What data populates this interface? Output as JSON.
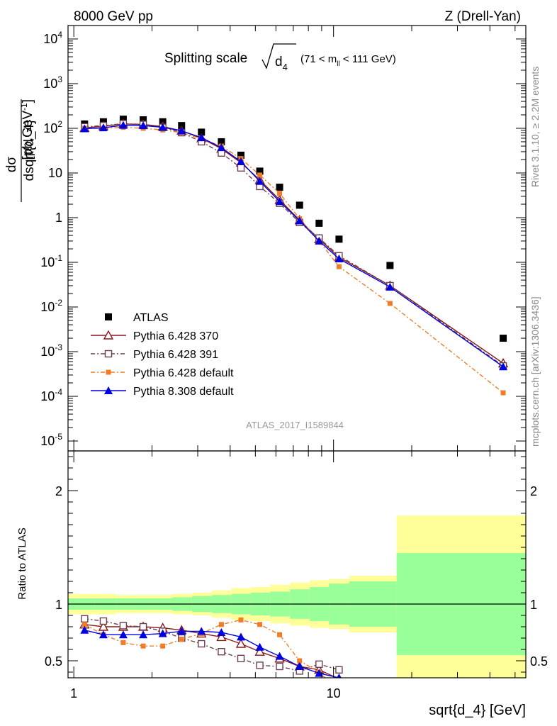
{
  "header": {
    "energy": "8000 GeV pp",
    "process": "Z (Drell-Yan)",
    "title_main": "Splitting scale",
    "title_sub": "(71 < m",
    "title_sub2": " < 111 GeV)",
    "side_rivet": "Rivet 3.1.10, ≥ 2.2M events",
    "side_mcplots": "mcplots.cern.ch [arXiv:1306.3436]",
    "analysis_id": "ATLAS_2017_I1589844",
    "ylabel_num": "dσ",
    "ylabel_den": "dsqrt{d_4}",
    "ylabel_unit": "[pb,GeV",
    "xlabel": "sqrt{d_4} [GeV]",
    "ratio_ylabel": "Ratio to ATLAS"
  },
  "colors": {
    "atlas": "#000000",
    "py370": "#8b1a1a",
    "py391": "#6b4050",
    "py6def": "#f07c28",
    "py8": "#0000e0",
    "band_inner": "#99ff99",
    "band_outer": "#ffff99"
  },
  "chart_data": [
    {
      "type": "scatter",
      "panel": "main",
      "xscale": "log",
      "yscale": "log",
      "xlim": [
        0.95,
        55
      ],
      "ylim": [
        6e-06,
        20000
      ],
      "ytick_labels": [
        "10^-5",
        "10^-4",
        "10^-3",
        "10^-2",
        "10^-1",
        "1",
        "10",
        "10^2",
        "10^3",
        "10^4"
      ],
      "xtick_labels": [
        "1",
        "10"
      ],
      "legend_position": "bottom-left",
      "x": [
        1.1,
        1.3,
        1.55,
        1.85,
        2.2,
        2.6,
        3.1,
        3.7,
        4.4,
        5.2,
        6.2,
        7.4,
        8.8,
        10.5,
        16.5,
        45
      ],
      "series": [
        {
          "name": "ATLAS",
          "key": "atlas",
          "values": [
            125,
            140,
            160,
            155,
            140,
            115,
            82,
            50,
            25,
            11,
            4.8,
            1.9,
            0.75,
            0.33,
            0.085,
            0.002
          ]
        },
        {
          "name": "Pythia 6.428 370",
          "key": "py370",
          "values": [
            102,
            112,
            125,
            122,
            110,
            88,
            60,
            35,
            17,
            7,
            2.5,
            0.88,
            0.33,
            0.13,
            0.03,
            0.00055
          ]
        },
        {
          "name": "Pythia 6.428 391",
          "key": "py391",
          "values": [
            108,
            115,
            127,
            122,
            105,
            80,
            50,
            28,
            13,
            5,
            2.1,
            0.78,
            0.35,
            0.14,
            0.03,
            0.00048
          ]
        },
        {
          "name": "Pythia 6.428 default",
          "key": "py6def",
          "values": [
            100,
            100,
            105,
            100,
            92,
            80,
            58,
            40,
            21,
            9,
            3.5,
            0.95,
            0.3,
            0.08,
            0.012,
            0.00012
          ]
        },
        {
          "name": "Pythia 8.308 default",
          "key": "py8",
          "values": [
            98,
            103,
            117,
            115,
            105,
            88,
            62,
            37,
            18,
            6.5,
            2.3,
            0.85,
            0.3,
            0.12,
            0.028,
            0.00046
          ]
        }
      ]
    },
    {
      "type": "line",
      "panel": "ratio",
      "xscale": "log",
      "xlim": [
        0.95,
        55
      ],
      "ylim": [
        0.35,
        2.35
      ],
      "ytick_labels": [
        "0.5",
        "1",
        "2"
      ],
      "x": [
        1.1,
        1.3,
        1.55,
        1.85,
        2.2,
        2.6,
        3.1,
        3.7,
        4.4,
        5.2,
        6.2,
        7.4,
        8.8,
        10.5
      ],
      "series": [
        {
          "name": "Pythia 6.428 370",
          "key": "py370",
          "values": [
            0.82,
            0.8,
            0.8,
            0.8,
            0.79,
            0.77,
            0.74,
            0.71,
            0.65,
            0.58,
            0.52,
            0.45,
            0.42,
            0.34
          ]
        },
        {
          "name": "Pythia 6.428 391",
          "key": "py391",
          "values": [
            0.87,
            0.85,
            0.81,
            0.8,
            0.76,
            0.7,
            0.65,
            0.58,
            0.52,
            0.46,
            0.45,
            0.41,
            0.47,
            0.42
          ]
        },
        {
          "name": "Pythia 6.428 default",
          "key": "py6def",
          "values": [
            0.82,
            0.73,
            0.66,
            0.63,
            0.63,
            0.69,
            0.74,
            0.82,
            0.86,
            0.82,
            0.73,
            0.5,
            0.4,
            0.24
          ]
        },
        {
          "name": "Pythia 8.308 default",
          "key": "py8",
          "values": [
            0.77,
            0.73,
            0.73,
            0.73,
            0.74,
            0.76,
            0.76,
            0.75,
            0.71,
            0.62,
            0.54,
            0.45,
            0.39,
            0.35
          ]
        }
      ],
      "bands": {
        "edges": [
          0.95,
          1.2,
          1.45,
          1.7,
          2.0,
          2.4,
          2.85,
          3.4,
          4.05,
          4.8,
          5.7,
          6.8,
          8.1,
          9.6,
          11.5,
          17.5,
          55
        ],
        "inner": [
          0.05,
          0.05,
          0.05,
          0.05,
          0.05,
          0.06,
          0.07,
          0.08,
          0.09,
          0.1,
          0.11,
          0.13,
          0.15,
          0.18,
          0.2,
          0.45
        ],
        "outer": [
          0.09,
          0.09,
          0.08,
          0.08,
          0.08,
          0.09,
          0.1,
          0.12,
          0.14,
          0.15,
          0.17,
          0.19,
          0.21,
          0.22,
          0.25,
          0.78
        ]
      }
    }
  ]
}
